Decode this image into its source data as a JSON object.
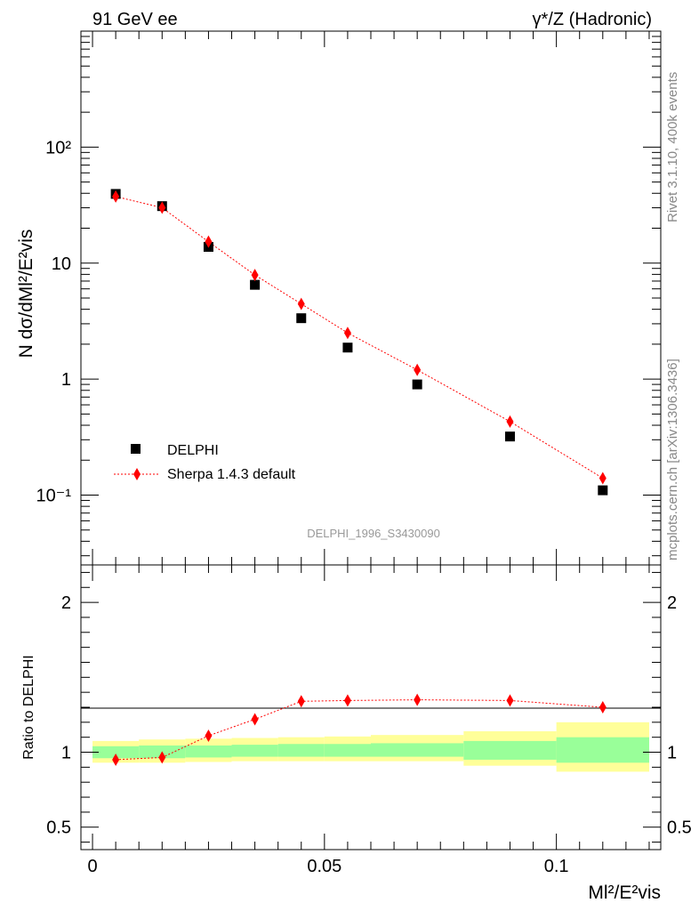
{
  "header": {
    "left": "91 GeV ee",
    "right": "γ*/Z (Hadronic)"
  },
  "side_labels": {
    "version": "Rivet 3.1.10,  400k events",
    "source": "mcplots.cern.ch [arXiv:1306.3436]"
  },
  "analysis_id": "DELPHI_1996_S3430090",
  "colors": {
    "data": "#000000",
    "mc": "#ff0000",
    "band_inner": "#99ff99",
    "band_outer": "#ffff99"
  },
  "chart_data": [
    {
      "type": "scatter",
      "title": "91 GeV ee",
      "ylabel": "N dσ/dMl²/E²vis",
      "ylog": true,
      "xlim": [
        -0.0025,
        0.1225
      ],
      "ylim": [
        0.025,
        1000
      ],
      "ytick_labels": [
        "10⁻¹",
        "1",
        "10",
        "10²"
      ],
      "ytick_values": [
        0.1,
        1,
        10,
        100
      ],
      "legend_position": "lower-left",
      "series": [
        {
          "name": "DELPHI",
          "marker": "square",
          "x": [
            0.005,
            0.015,
            0.025,
            0.035,
            0.045,
            0.055,
            0.07,
            0.09,
            0.11
          ],
          "values": [
            39.5,
            31.0,
            13.8,
            6.5,
            3.35,
            1.87,
            0.9,
            0.32,
            0.11
          ]
        },
        {
          "name": "Sherpa 1.4.3 default",
          "marker": "diamond",
          "line": "dotted",
          "x": [
            0.005,
            0.015,
            0.025,
            0.035,
            0.045,
            0.055,
            0.07,
            0.09,
            0.11
          ],
          "values": [
            37.5,
            30.0,
            15.3,
            7.9,
            4.45,
            2.5,
            1.2,
            0.43,
            0.14
          ]
        }
      ]
    },
    {
      "type": "scatter",
      "ylabel": "Ratio to DELPHI",
      "xlabel": "Ml²/E²vis",
      "xlim": [
        -0.0025,
        0.1225
      ],
      "ylim": [
        0.35,
        2.25
      ],
      "xtick_labels": [
        "0",
        "0.05",
        "0.1"
      ],
      "xtick_values": [
        0,
        0.05,
        0.1
      ],
      "ytick_labels": [
        "0.5",
        "1",
        "2"
      ],
      "ytick_values": [
        0.5,
        1,
        2
      ],
      "bands": {
        "edges": [
          0,
          0.01,
          0.02,
          0.03,
          0.04,
          0.05,
          0.06,
          0.08,
          0.1,
          0.12
        ],
        "inner": [
          [
            0.96,
            1.04
          ],
          [
            0.96,
            1.045
          ],
          [
            0.965,
            1.045
          ],
          [
            0.97,
            1.05
          ],
          [
            0.97,
            1.055
          ],
          [
            0.97,
            1.055
          ],
          [
            0.97,
            1.06
          ],
          [
            0.95,
            1.075
          ],
          [
            0.93,
            1.1
          ]
        ],
        "outer": [
          [
            0.93,
            1.075
          ],
          [
            0.93,
            1.085
          ],
          [
            0.935,
            1.09
          ],
          [
            0.94,
            1.095
          ],
          [
            0.94,
            1.1
          ],
          [
            0.94,
            1.105
          ],
          [
            0.94,
            1.115
          ],
          [
            0.91,
            1.14
          ],
          [
            0.87,
            1.2
          ]
        ]
      },
      "series": [
        {
          "name": "Sherpa 1.4.3 default / DELPHI",
          "marker": "diamond",
          "x": [
            0.005,
            0.015,
            0.025,
            0.035,
            0.045,
            0.055,
            0.07,
            0.09,
            0.11
          ],
          "values": [
            0.95,
            0.965,
            1.11,
            1.22,
            1.34,
            1.345,
            1.35,
            1.345,
            1.3
          ]
        }
      ]
    }
  ]
}
